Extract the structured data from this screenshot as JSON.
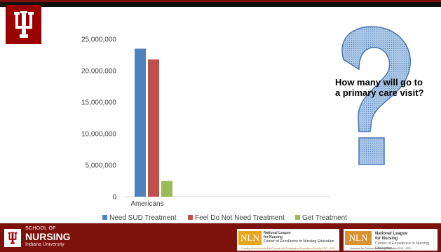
{
  "chart_data": {
    "type": "bar",
    "categories": [
      "Americans"
    ],
    "series": [
      {
        "name": "Need SUD Treatment",
        "values": [
          23500000
        ],
        "color": "#4f81bd"
      },
      {
        "name": "Feel Do Not Need Treatment",
        "values": [
          21800000
        ],
        "color": "#c0504d"
      },
      {
        "name": "Get Treatment",
        "values": [
          2500000
        ],
        "color": "#9bbb59"
      }
    ],
    "ylim": [
      0,
      25000000
    ],
    "yticks": [
      0,
      5000000,
      10000000,
      15000000,
      20000000,
      25000000
    ],
    "ytick_labels": [
      "0",
      "5,000,000",
      "10,000,000",
      "15,000,000",
      "20,000,000",
      "25,000,000"
    ],
    "grid": false,
    "legend": "bottom",
    "title": "",
    "xlabel": "",
    "ylabel": ""
  },
  "annotation": {
    "text": "How many will go to a primary care visit?"
  },
  "footer": {
    "school_of": "SCHOOL OF",
    "nursing": "NURSING",
    "university": "Indiana University",
    "nln1": {
      "badge": "NLN",
      "line1": "National League",
      "line2": "for Nursing",
      "line3": "Center of Excellence in Nursing Education",
      "footnote": "Creating Environments that Promote the Pedagogical Expertise of Faculty 2017 - 2021"
    },
    "nln2": {
      "badge": "NLN",
      "line1": "National League",
      "line2": "for Nursing",
      "line3": "Center of Excellence in Nursing Education",
      "footnote": "Advance the Science of Nursing Education 2018 - 2021"
    }
  },
  "colors": {
    "iu_crimson": "#990000",
    "footer_bg": "#7d110c",
    "qmark_fill": "#a9c5e6",
    "qmark_stroke": "#4a78b0"
  }
}
